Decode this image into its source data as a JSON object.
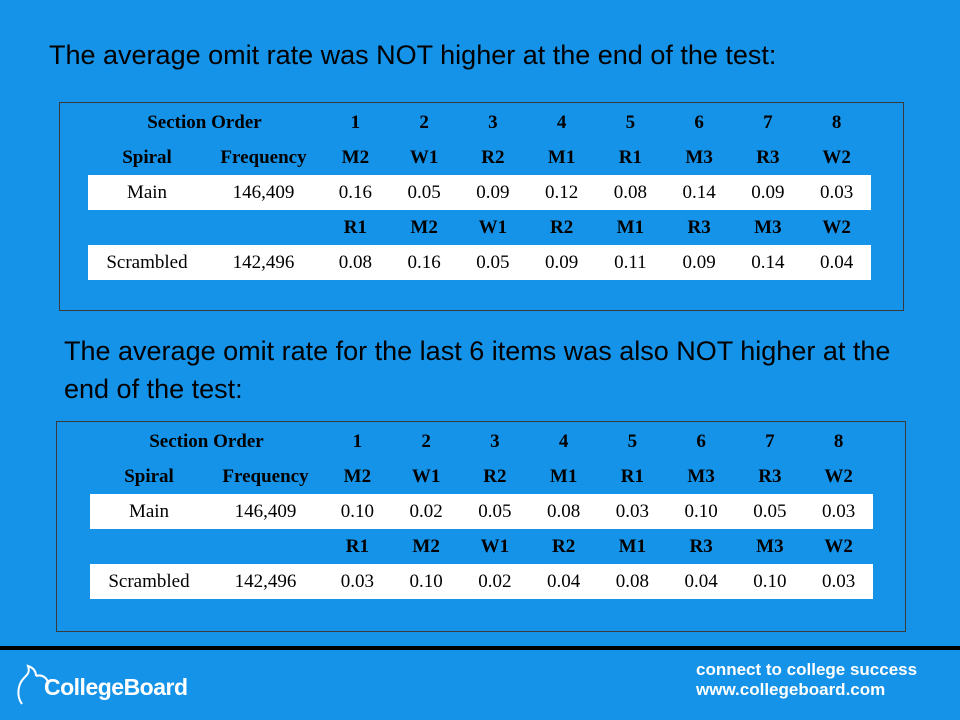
{
  "heading_1": "The average omit rate was NOT higher at the end of the test:",
  "heading_2": "The average omit rate for the last 6 items was also NOT higher at the end of the test:",
  "tables": [
    {
      "header": [
        "Section Order",
        "",
        "1",
        "2",
        "3",
        "4",
        "5",
        "6",
        "7",
        "8"
      ],
      "spiral_row": [
        "Spiral",
        "Frequency",
        "M2",
        "W1",
        "R2",
        "M1",
        "R1",
        "M3",
        "R3",
        "W2"
      ],
      "main_row": [
        "Main",
        "146,409",
        "0.16",
        "0.05",
        "0.09",
        "0.12",
        "0.08",
        "0.14",
        "0.09",
        "0.03"
      ],
      "scrambled_header": [
        "",
        "",
        "R1",
        "M2",
        "W1",
        "R2",
        "M1",
        "R3",
        "M3",
        "W2"
      ],
      "scrambled_row": [
        "Scrambled",
        "142,496",
        "0.08",
        "0.16",
        "0.05",
        "0.09",
        "0.11",
        "0.09",
        "0.14",
        "0.04"
      ]
    },
    {
      "header": [
        "Section Order",
        "",
        "1",
        "2",
        "3",
        "4",
        "5",
        "6",
        "7",
        "8"
      ],
      "spiral_row": [
        "Spiral",
        "Frequency",
        "M2",
        "W1",
        "R2",
        "M1",
        "R1",
        "M3",
        "R3",
        "W2"
      ],
      "main_row": [
        "Main",
        "146,409",
        "0.10",
        "0.02",
        "0.05",
        "0.08",
        "0.03",
        "0.10",
        "0.05",
        "0.03"
      ],
      "scrambled_header": [
        "",
        "",
        "R1",
        "M2",
        "W1",
        "R2",
        "M1",
        "R3",
        "M3",
        "W2"
      ],
      "scrambled_row": [
        "Scrambled",
        "142,496",
        "0.03",
        "0.10",
        "0.02",
        "0.04",
        "0.08",
        "0.04",
        "0.10",
        "0.03"
      ]
    }
  ],
  "footer": {
    "logo_text": "CollegeBoard",
    "tagline_line1": "connect to college success",
    "tagline_line2": "www.collegeboard.com"
  },
  "colors": {
    "background": "#1593e9",
    "row_highlight": "#ffffff"
  }
}
